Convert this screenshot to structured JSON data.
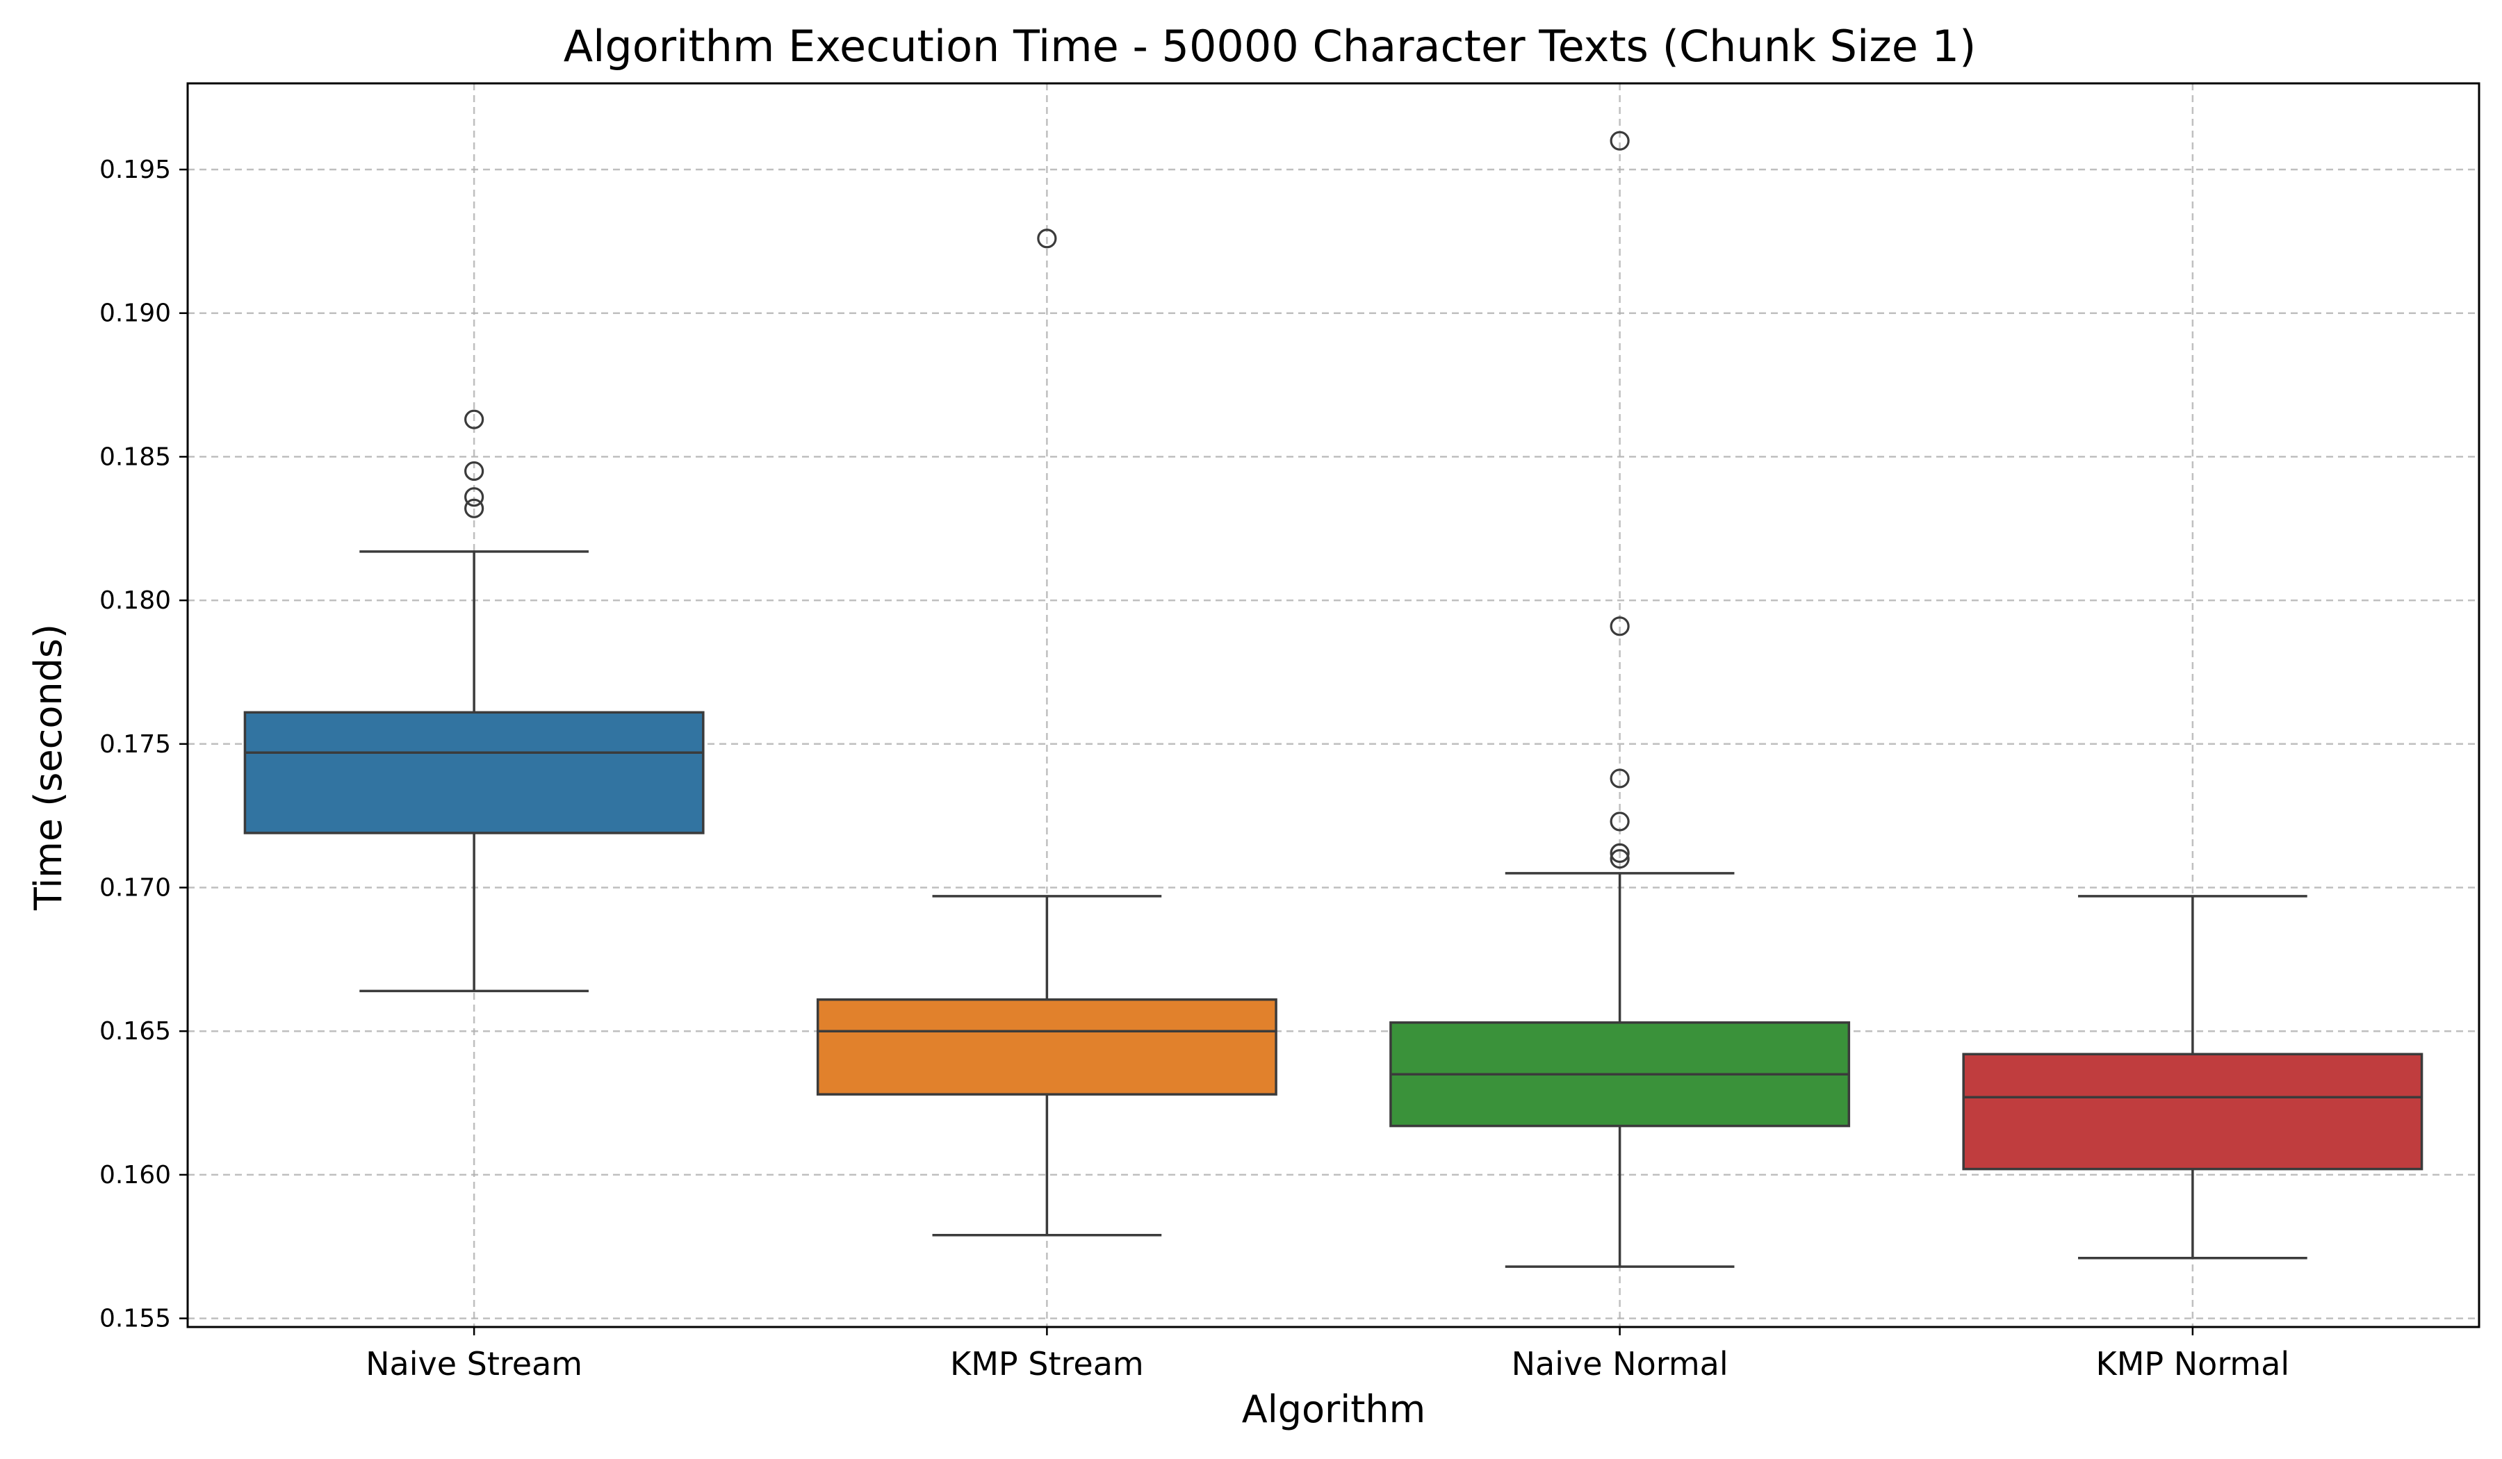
{
  "chart_data": {
    "type": "boxplot",
    "title": "Algorithm Execution Time - 50000 Character Texts (Chunk Size 1)",
    "xlabel": "Algorithm",
    "ylabel": "Time (seconds)",
    "ylim": [
      0.1547,
      0.198
    ],
    "yticks": [
      0.155,
      0.16,
      0.165,
      0.17,
      0.175,
      0.18,
      0.185,
      0.19,
      0.195
    ],
    "ytick_labels": [
      "0.155",
      "0.160",
      "0.165",
      "0.170",
      "0.175",
      "0.180",
      "0.185",
      "0.190",
      "0.195"
    ],
    "grid": true,
    "categories": [
      "Naive Stream",
      "KMP Stream",
      "Naive Normal",
      "KMP Normal"
    ],
    "series": [
      {
        "whisker_low": 0.1664,
        "q1": 0.1719,
        "median": 0.1747,
        "q3": 0.1761,
        "whisker_high": 0.1817,
        "outliers": [
          0.1863,
          0.1845,
          0.1836,
          0.1832
        ],
        "color": "#3274a1"
      },
      {
        "whisker_low": 0.1579,
        "q1": 0.1628,
        "median": 0.165,
        "q3": 0.1661,
        "whisker_high": 0.1697,
        "outliers": [
          0.1926
        ],
        "color": "#e1812c"
      },
      {
        "whisker_low": 0.1568,
        "q1": 0.1617,
        "median": 0.1635,
        "q3": 0.1653,
        "whisker_high": 0.1705,
        "outliers": [
          0.196,
          0.1791,
          0.1738,
          0.1723,
          0.1712,
          0.171
        ],
        "color": "#3a923a"
      },
      {
        "whisker_low": 0.1571,
        "q1": 0.1602,
        "median": 0.1627,
        "q3": 0.1642,
        "whisker_high": 0.1697,
        "outliers": [],
        "color": "#c03d3e"
      }
    ]
  }
}
